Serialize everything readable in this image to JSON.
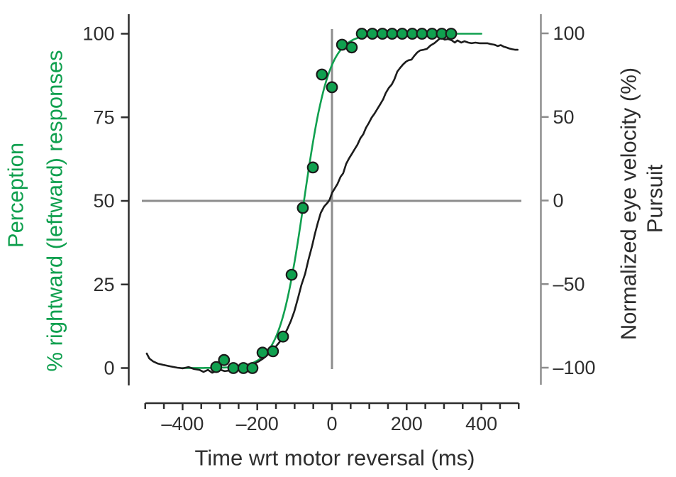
{
  "figure": {
    "labels": {
      "left_title_line1": "Perception",
      "left_title_line2": "% rightward (leftward) responses",
      "right_title_line1": "Normalized eye velocity (%)",
      "right_title_line2": "Pursuit",
      "x_title": "Time wrt motor reversal (ms)"
    },
    "colors": {
      "green": "#10a04f",
      "trace_black": "#1c1c1c",
      "axis_black": "#2e2e2e",
      "gray": "#8d8d8d",
      "background": "#ffffff"
    }
  },
  "chart_data": {
    "type": "line+scatter",
    "title": "",
    "xlabel": "Time wrt motor reversal (ms)",
    "x_axis": {
      "range_ms": [
        -500,
        500
      ],
      "major_ticks": [
        -400,
        -200,
        0,
        200,
        400
      ],
      "minor_tick_step_ms": 50
    },
    "left_y_axis": {
      "label": "Perception, % rightward (leftward) responses",
      "range_pct": [
        0,
        100
      ],
      "ticks": [
        0,
        25,
        50,
        75,
        100
      ]
    },
    "right_y_axis": {
      "label": "Normalized eye velocity (%), Pursuit",
      "range_pct": [
        -100,
        100
      ],
      "ticks": [
        -100,
        -50,
        0,
        50,
        100
      ]
    },
    "crosshair": {
      "time_ms": 0,
      "left_pct": 50,
      "right_pct": 0
    },
    "series": [
      {
        "name": "perception-responses",
        "type": "scatter",
        "axis": "left",
        "points_ms_pct": [
          [
            -310,
            0.3
          ],
          [
            -289,
            2.4
          ],
          [
            -264,
            0
          ],
          [
            -237,
            0
          ],
          [
            -213,
            0
          ],
          [
            -186,
            4.6
          ],
          [
            -158,
            5.0
          ],
          [
            -131,
            9.4
          ],
          [
            -108,
            27.9
          ],
          [
            -78,
            47.9
          ],
          [
            -51,
            60
          ],
          [
            -27,
            87.8
          ],
          [
            0,
            84
          ],
          [
            27,
            96.7
          ],
          [
            53,
            95.9
          ],
          [
            80,
            100
          ],
          [
            108,
            100
          ],
          [
            135,
            100
          ],
          [
            161,
            100
          ],
          [
            188,
            100
          ],
          [
            215,
            100
          ],
          [
            241,
            100
          ],
          [
            268,
            100
          ],
          [
            294,
            100
          ],
          [
            319,
            100
          ]
        ]
      },
      {
        "name": "perception-fit",
        "type": "logistic-curve",
        "axis": "left",
        "midpoint_ms": -75,
        "slope_ms": 33,
        "draw_range_ms": [
          -400,
          400
        ]
      },
      {
        "name": "pursuit-velocity",
        "type": "line",
        "axis": "right",
        "points_ms_pct": [
          [
            -496,
            -91.5
          ],
          [
            -489,
            -94.5
          ],
          [
            -479,
            -96.2
          ],
          [
            -467,
            -97.5
          ],
          [
            -452,
            -98.3
          ],
          [
            -433,
            -99.2
          ],
          [
            -414,
            -100
          ],
          [
            -399,
            -100.4
          ],
          [
            -384,
            -99.6
          ],
          [
            -369,
            -100.8
          ],
          [
            -355,
            -101.3
          ],
          [
            -344,
            -102.5
          ],
          [
            -332,
            -101.3
          ],
          [
            -321,
            -103
          ],
          [
            -310,
            -102.1
          ],
          [
            -298,
            -101.3
          ],
          [
            -287,
            -102.1
          ],
          [
            -275,
            -101.7
          ],
          [
            -264,
            -102.1
          ],
          [
            -253,
            -101.3
          ],
          [
            -241,
            -100.4
          ],
          [
            -230,
            -99.6
          ],
          [
            -218,
            -98.7
          ],
          [
            -207,
            -97.5
          ],
          [
            -196,
            -96.2
          ],
          [
            -184,
            -94.5
          ],
          [
            -173,
            -92.4
          ],
          [
            -161,
            -89.8
          ],
          [
            -150,
            -87.3
          ],
          [
            -139,
            -84.3
          ],
          [
            -129,
            -80.9
          ],
          [
            -120,
            -77.1
          ],
          [
            -110,
            -72
          ],
          [
            -101,
            -66.5
          ],
          [
            -91,
            -58.4
          ],
          [
            -82,
            -50.7
          ],
          [
            -72,
            -43.9
          ],
          [
            -63,
            -35.5
          ],
          [
            -53,
            -27
          ],
          [
            -46,
            -20.2
          ],
          [
            -38,
            -13.4
          ],
          [
            -30,
            -7.4
          ],
          [
            -21,
            -3.6
          ],
          [
            -11,
            -1.1
          ],
          [
            -6,
            0.6
          ],
          [
            0,
            4.5
          ],
          [
            8,
            7.4
          ],
          [
            15,
            10
          ],
          [
            23,
            14.2
          ],
          [
            30,
            16.3
          ],
          [
            38,
            21.9
          ],
          [
            46,
            25.3
          ],
          [
            53,
            27.8
          ],
          [
            61,
            30.8
          ],
          [
            68,
            33.3
          ],
          [
            76,
            37.2
          ],
          [
            84,
            39.7
          ],
          [
            91,
            43.5
          ],
          [
            99,
            46.5
          ],
          [
            106,
            49.5
          ],
          [
            114,
            52
          ],
          [
            129,
            57.5
          ],
          [
            137,
            60.5
          ],
          [
            144,
            64.3
          ],
          [
            152,
            67.3
          ],
          [
            160,
            69.4
          ],
          [
            167,
            72.4
          ],
          [
            175,
            77.1
          ],
          [
            182,
            79.2
          ],
          [
            190,
            81.3
          ],
          [
            198,
            83
          ],
          [
            205,
            83.9
          ],
          [
            213,
            84.3
          ],
          [
            220,
            86.4
          ],
          [
            228,
            88.5
          ],
          [
            236,
            89.8
          ],
          [
            245,
            90.2
          ],
          [
            254,
            90.7
          ],
          [
            264,
            92.8
          ],
          [
            274,
            94.1
          ],
          [
            283,
            95.8
          ],
          [
            292,
            97.5
          ],
          [
            302,
            96.2
          ],
          [
            311,
            96.6
          ],
          [
            321,
            95.8
          ],
          [
            329,
            94.5
          ],
          [
            336,
            95.8
          ],
          [
            346,
            94.5
          ],
          [
            355,
            95.3
          ],
          [
            365,
            94.5
          ],
          [
            374,
            94.1
          ],
          [
            384,
            94.5
          ],
          [
            395,
            94.1
          ],
          [
            404,
            94.1
          ],
          [
            416,
            94.1
          ],
          [
            425,
            93.6
          ],
          [
            435,
            93.2
          ],
          [
            444,
            92.4
          ],
          [
            452,
            93
          ],
          [
            460,
            92
          ],
          [
            468,
            91.5
          ],
          [
            475,
            90.9
          ],
          [
            483,
            90.5
          ],
          [
            491,
            90.2
          ],
          [
            497,
            90.2
          ]
        ]
      }
    ]
  }
}
